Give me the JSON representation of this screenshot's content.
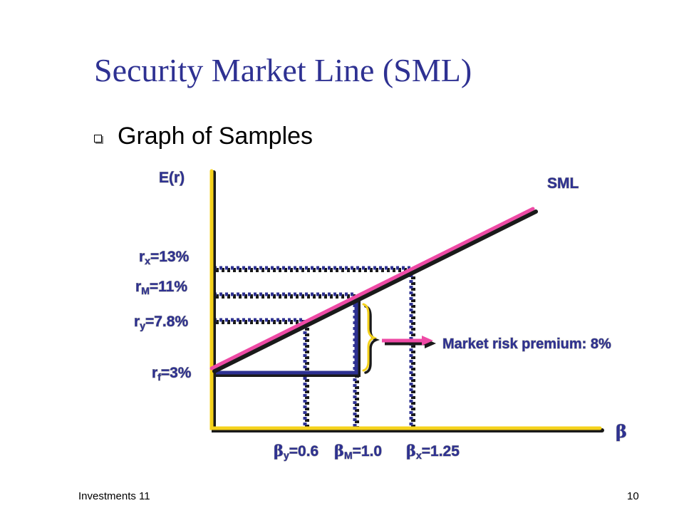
{
  "slide": {
    "title": "Security Market Line (SML)",
    "bullet": "Graph of Samples",
    "footer_left": "Investments 11",
    "footer_right": "10"
  },
  "graph": {
    "y_axis_label": "E(r)",
    "x_axis_symbol": "β",
    "line_label": "SML",
    "rates": {
      "rx": {
        "main": "r",
        "sub": "x",
        "rest": "=13%"
      },
      "rM": {
        "main": "r",
        "sub": "M",
        "rest": "=11%"
      },
      "ry": {
        "main": "r",
        "sub": "y",
        "rest": "=7.8%"
      },
      "rf": {
        "main": "r",
        "sub": "f",
        "rest": "=3%"
      }
    },
    "betas": {
      "by": {
        "main": "β",
        "sub": "y",
        "rest": "=0.6"
      },
      "bM": {
        "main": "β",
        "sub": "M",
        "rest": "=1.0"
      },
      "bx": {
        "main": "β",
        "sub": "x",
        "rest": "=1.25"
      }
    },
    "annotation": "Market risk premium: 8%",
    "colors": {
      "title": "#2e3192",
      "label": "#2e3192",
      "axis": "#f5d21b",
      "sml": "#ee4aa5",
      "guide": "#2e3192",
      "brace": "#f5d21b",
      "arrow": "#ee4aa5",
      "shadow": "#1a1a1a"
    }
  }
}
